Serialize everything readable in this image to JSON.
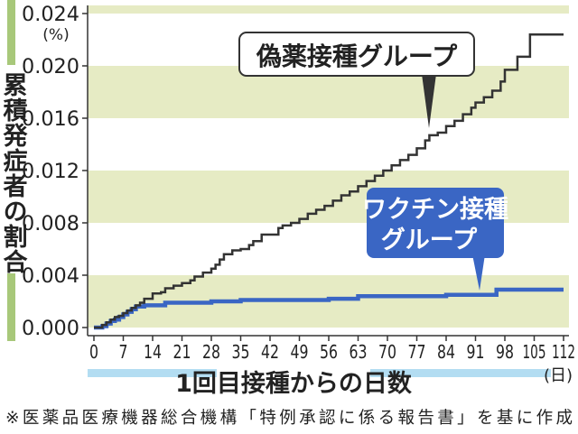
{
  "chart_data": {
    "type": "line",
    "ylabel": "累積発症者の割合",
    "yunit": "(%)",
    "xlabel": "1回目接種からの日数",
    "xunit": "(日)",
    "ylim": [
      0,
      0.024
    ],
    "xlim": [
      0,
      112
    ],
    "yticks": [
      "0.000",
      "0.004",
      "0.008",
      "0.012",
      "0.016",
      "0.020",
      "0.024"
    ],
    "xticks": [
      "0",
      "7",
      "14",
      "21",
      "28",
      "35",
      "42",
      "49",
      "56",
      "63",
      "70",
      "77",
      "84",
      "91",
      "98",
      "105",
      "112"
    ],
    "band_color": "#e6ebc4",
    "series": [
      {
        "name": "偽薬接種グループ",
        "color": "#333333",
        "step": true,
        "x": [
          0,
          2,
          3,
          4,
          5,
          6,
          7,
          8,
          9,
          10,
          11,
          12,
          14,
          16,
          17,
          19,
          21,
          23,
          24,
          26,
          28,
          29,
          30,
          31,
          33,
          35,
          37,
          38,
          40,
          42,
          44,
          45,
          47,
          49,
          51,
          53,
          55,
          57,
          59,
          61,
          63,
          65,
          67,
          69,
          71,
          73,
          75,
          77,
          79,
          80,
          82,
          84,
          86,
          88,
          90,
          91,
          93,
          95,
          97,
          98,
          101,
          104,
          112
        ],
        "y": [
          0,
          0.0002,
          0.0004,
          0.0006,
          0.0008,
          0.0009,
          0.0011,
          0.0013,
          0.0015,
          0.0017,
          0.0019,
          0.0022,
          0.0026,
          0.0027,
          0.003,
          0.0032,
          0.0034,
          0.0036,
          0.0039,
          0.0042,
          0.0045,
          0.0048,
          0.0052,
          0.0056,
          0.0059,
          0.006,
          0.0063,
          0.0066,
          0.0071,
          0.0071,
          0.0076,
          0.0078,
          0.008,
          0.0083,
          0.0087,
          0.009,
          0.0093,
          0.0097,
          0.0101,
          0.0104,
          0.0108,
          0.0112,
          0.0116,
          0.012,
          0.0124,
          0.0128,
          0.0132,
          0.0137,
          0.0143,
          0.0147,
          0.0149,
          0.0154,
          0.0158,
          0.0163,
          0.0168,
          0.0172,
          0.0176,
          0.0181,
          0.0188,
          0.0197,
          0.0207,
          0.0224,
          0.0224
        ]
      },
      {
        "name": "ワクチン接種グループ",
        "color": "#3a66c4",
        "step": true,
        "x": [
          0,
          2,
          3,
          4,
          5,
          6,
          7,
          8,
          9,
          10,
          12,
          14,
          17,
          21,
          28,
          35,
          42,
          56,
          63,
          77,
          84,
          96,
          112
        ],
        "y": [
          0,
          0.0001,
          0.0003,
          0.0005,
          0.0006,
          0.0008,
          0.001,
          0.0012,
          0.0014,
          0.0016,
          0.0017,
          0.0017,
          0.0019,
          0.0019,
          0.002,
          0.0021,
          0.0021,
          0.0022,
          0.0024,
          0.0024,
          0.0025,
          0.0029,
          0.0029
        ]
      }
    ]
  },
  "labels": {
    "placebo_callout": "偽薬接種グループ",
    "vaccine_callout_line1": "ワクチン接種",
    "vaccine_callout_line2": "グループ"
  },
  "footnote": "※医薬品医療機器総合機構「特例承認に係る報告書」を基に作成"
}
